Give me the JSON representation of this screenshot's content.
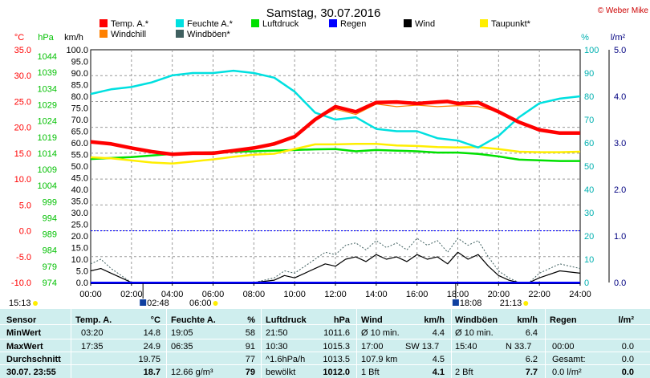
{
  "title": "Samstag, 30.07.2016",
  "copyright": "© Weber Mike",
  "chart_data": {
    "type": "line",
    "title": "Samstag, 30.07.2016",
    "x_ticks": [
      "00:00",
      "02:00",
      "04:00",
      "06:00",
      "08:00",
      "10:00",
      "12:00",
      "14:00",
      "16:00",
      "18:00",
      "20:00",
      "22:00",
      "24:00"
    ],
    "xlim": [
      "00:00",
      "24:00"
    ],
    "axes": {
      "temp": {
        "label": "°C",
        "color": "#ff0000",
        "ylim": [
          -10,
          35
        ],
        "ticks": [
          "35.0",
          "30.0",
          "25.0",
          "20.0",
          "15.0",
          "10.0",
          "5.0",
          "0.0",
          "-5.0",
          "-10.0"
        ]
      },
      "pressure": {
        "label": "hPa",
        "color": "#00c000",
        "ylim": [
          974,
          1046
        ],
        "ticks": [
          "1044",
          "1039",
          "1034",
          "1029",
          "1024",
          "1019",
          "1014",
          "1009",
          "1004",
          "999",
          "994",
          "989",
          "984",
          "979",
          "974"
        ]
      },
      "wind": {
        "label": "km/h",
        "color": "#000000",
        "ylim": [
          0,
          100
        ],
        "ticks": [
          "100.0",
          "95.0",
          "90.0",
          "85.0",
          "80.0",
          "75.0",
          "70.0",
          "65.0",
          "60.0",
          "55.0",
          "50.0",
          "45.0",
          "40.0",
          "35.0",
          "30.0",
          "25.0",
          "20.0",
          "15.0",
          "10.0",
          "5.0",
          "0.0"
        ]
      },
      "humidity": {
        "label": "%",
        "color": "#00b0b0",
        "ylim": [
          0,
          100
        ],
        "ticks": [
          "100",
          "90",
          "80",
          "70",
          "60",
          "50",
          "40",
          "30",
          "20",
          "10",
          "0"
        ]
      },
      "rain": {
        "label": "l/m²",
        "color": "#000080",
        "ylim": [
          0,
          5
        ],
        "ticks": [
          "5.0",
          "4.0",
          "3.0",
          "2.0",
          "1.0",
          "0.0"
        ]
      }
    },
    "legend": [
      {
        "name": "Temp. A.*",
        "color": "#ff0000"
      },
      {
        "name": "Feuchte A.*",
        "color": "#00e0e0"
      },
      {
        "name": "Luftdruck",
        "color": "#00e000"
      },
      {
        "name": "Regen",
        "color": "#0000ff"
      },
      {
        "name": "Wind",
        "color": "#000000"
      },
      {
        "name": "Taupunkt*",
        "color": "#ffee00"
      },
      {
        "name": "Windchill",
        "color": "#ff8000"
      },
      {
        "name": "Windböen*",
        "color": "#406060"
      }
    ],
    "series": [
      {
        "name": "Temp. A.*",
        "axis": "temp",
        "color": "#ff0000",
        "x": [
          0,
          1,
          2,
          3,
          4,
          5,
          6,
          7,
          8,
          9,
          10,
          11,
          12,
          13,
          14,
          15,
          16,
          17,
          17.5,
          18,
          19,
          20,
          21,
          22,
          23,
          24
        ],
        "values": [
          17.2,
          16.8,
          16.0,
          15.3,
          14.8,
          15.0,
          15.0,
          15.5,
          16.0,
          16.8,
          18.2,
          21.5,
          24.0,
          23.0,
          24.8,
          24.9,
          24.6,
          24.9,
          25.0,
          24.6,
          24.8,
          23.0,
          21.0,
          19.5,
          18.9,
          18.9
        ]
      },
      {
        "name": "Windchill",
        "axis": "temp",
        "color": "#ff8000",
        "x": [
          0,
          2,
          4,
          6,
          8,
          10,
          11,
          12,
          13,
          14,
          15,
          16,
          17,
          18,
          19,
          20,
          21,
          22,
          23,
          24
        ],
        "values": [
          17.2,
          16.0,
          14.8,
          15.0,
          16.0,
          18.2,
          21.5,
          23.5,
          22.5,
          24.5,
          24.0,
          24.3,
          24.0,
          24.2,
          24.0,
          23.0,
          21.0,
          19.5,
          18.9,
          18.9
        ]
      },
      {
        "name": "Feuchte A.*",
        "axis": "humidity",
        "color": "#00e0e0",
        "x": [
          0,
          1,
          2,
          3,
          4,
          5,
          6,
          7,
          8,
          9,
          10,
          11,
          12,
          13,
          14,
          15,
          16,
          17,
          18,
          19,
          20,
          21,
          22,
          23,
          24
        ],
        "values": [
          81,
          83,
          84,
          86,
          89,
          90,
          90,
          91,
          90,
          88,
          82,
          73,
          70,
          71,
          66,
          65,
          65,
          62,
          61,
          58,
          63,
          71,
          77,
          79,
          80
        ]
      },
      {
        "name": "Taupunkt*",
        "axis": "temp",
        "color": "#ffee00",
        "x": [
          0,
          1,
          2,
          3,
          4,
          5,
          6,
          7,
          8,
          9,
          10,
          11,
          12,
          13,
          14,
          15,
          16,
          17,
          18,
          19,
          20,
          21,
          22,
          23,
          24
        ],
        "values": [
          14.2,
          14.0,
          13.6,
          13.2,
          13.0,
          13.4,
          13.8,
          14.3,
          14.7,
          14.9,
          15.8,
          16.7,
          16.7,
          16.8,
          16.8,
          16.5,
          16.4,
          16.2,
          16.1,
          16.2,
          15.8,
          15.3,
          15.2,
          15.2,
          15.3
        ]
      },
      {
        "name": "Luftdruck",
        "axis": "pressure",
        "color": "#00e000",
        "x": [
          0,
          2,
          4,
          6,
          8,
          10,
          11,
          12,
          13,
          14,
          15,
          16,
          17,
          18,
          19,
          20,
          21,
          22,
          23,
          24
        ],
        "values": [
          1012.2,
          1012.8,
          1013.8,
          1014.3,
          1014.6,
          1015.0,
          1015.2,
          1015.3,
          1014.6,
          1015.0,
          1014.8,
          1014.6,
          1014.2,
          1014.2,
          1013.8,
          1013.0,
          1012.0,
          1011.8,
          1011.6,
          1011.6
        ]
      },
      {
        "name": "Wind",
        "axis": "wind",
        "color": "#000000",
        "x": [
          0,
          0.5,
          1,
          1.5,
          2,
          3,
          4,
          6,
          8,
          9,
          9.5,
          10,
          10.5,
          11,
          11.5,
          12,
          12.5,
          13,
          13.5,
          14,
          14.5,
          15,
          15.5,
          16,
          16.5,
          17,
          17.5,
          18,
          18.5,
          19,
          19.5,
          20,
          20.5,
          21,
          21.5,
          22,
          23,
          24
        ],
        "values": [
          5,
          6,
          4,
          2,
          0,
          0,
          0,
          0,
          0,
          1,
          3,
          2,
          4,
          6,
          8,
          7,
          10,
          11,
          9,
          12,
          10,
          11,
          9,
          12,
          10,
          11,
          8,
          13,
          10,
          12,
          7,
          3,
          1,
          0,
          0,
          2,
          5,
          4
        ]
      },
      {
        "name": "Windböen*",
        "axis": "wind",
        "color": "#406060",
        "x": [
          0,
          0.5,
          1,
          1.5,
          2,
          3,
          4,
          6,
          8,
          9,
          9.5,
          10,
          10.5,
          11,
          11.5,
          12,
          12.5,
          13,
          13.5,
          14,
          14.5,
          15,
          15.5,
          16,
          16.5,
          17,
          17.5,
          18,
          18.5,
          19,
          19.5,
          20,
          20.5,
          21,
          21.5,
          22,
          23,
          24
        ],
        "values": [
          8,
          10,
          6,
          3,
          0,
          0,
          0,
          0,
          0,
          2,
          5,
          4,
          7,
          10,
          13,
          12,
          16,
          17,
          14,
          18,
          15,
          17,
          14,
          19,
          16,
          18,
          13,
          19,
          16,
          18,
          11,
          5,
          2,
          0,
          0,
          4,
          8,
          6
        ]
      },
      {
        "name": "Regen",
        "axis": "rain",
        "color": "#0000ff",
        "x": [
          0,
          24
        ],
        "values": [
          0,
          0
        ]
      }
    ],
    "reference_lines": [
      {
        "axis": "temp",
        "value": 0,
        "style": "dotted",
        "color": "#0000ff"
      }
    ],
    "sun": {
      "sunrise": "06:00",
      "sunset": "21:13",
      "left_label": "15:13"
    },
    "moon": {
      "moonrise": "02:48",
      "moonset": "18:08"
    }
  },
  "stats": {
    "headers": [
      "Sensor",
      "Temp. A.",
      "°C",
      "Feuchte A.",
      "%",
      "Luftdruck",
      "hPa",
      "Wind",
      "km/h",
      "Windböen",
      "km/h",
      "Regen",
      "l/m²"
    ],
    "rows": [
      {
        "label": "MinWert",
        "temp_time": "03:20",
        "temp": "14.8",
        "hum_time": "19:05",
        "hum": "58",
        "pres_time": "21:50",
        "pres": "1011.6",
        "wind_lbl": "Ø 10 min.",
        "wind_dir": "",
        "wind": "4.4",
        "gust_lbl": "Ø 10 min.",
        "gust_dir": "",
        "gust": "6.4",
        "rain_lbl": "",
        "rain": ""
      },
      {
        "label": "MaxWert",
        "temp_time": "17:35",
        "temp": "24.9",
        "hum_time": "06:35",
        "hum": "91",
        "pres_time": "10:30",
        "pres": "1015.3",
        "wind_lbl": "17:00",
        "wind_dir": "SW 13.7",
        "wind": "",
        "gust_lbl": "15:40",
        "gust_dir": "N 33.7",
        "gust": "",
        "rain_lbl": "00:00",
        "rain": "0.0"
      },
      {
        "label": "Durchschnitt",
        "temp_time": "",
        "temp": "19.75",
        "hum_time": "",
        "hum": "77",
        "pres_time": "^1.6hPa/h",
        "pres": "1013.5",
        "wind_lbl": "107.9 km",
        "wind_dir": "",
        "wind": "4.5",
        "gust_lbl": "",
        "gust_dir": "",
        "gust": "6.2",
        "rain_lbl": "Gesamt:",
        "rain": "0.0"
      },
      {
        "label": "30.07. 23:55",
        "temp_time": "",
        "temp": "18.7",
        "hum_time": "12.66 g/m³",
        "hum": "79",
        "pres_time": "bewölkt",
        "pres": "1012.0",
        "wind_lbl": "1 Bft",
        "wind_dir": "",
        "wind": "4.1",
        "gust_lbl": "2 Bft",
        "gust_dir": "",
        "gust": "7.7",
        "rain_lbl": "0.0 l/m²",
        "rain": "0.0"
      }
    ]
  }
}
